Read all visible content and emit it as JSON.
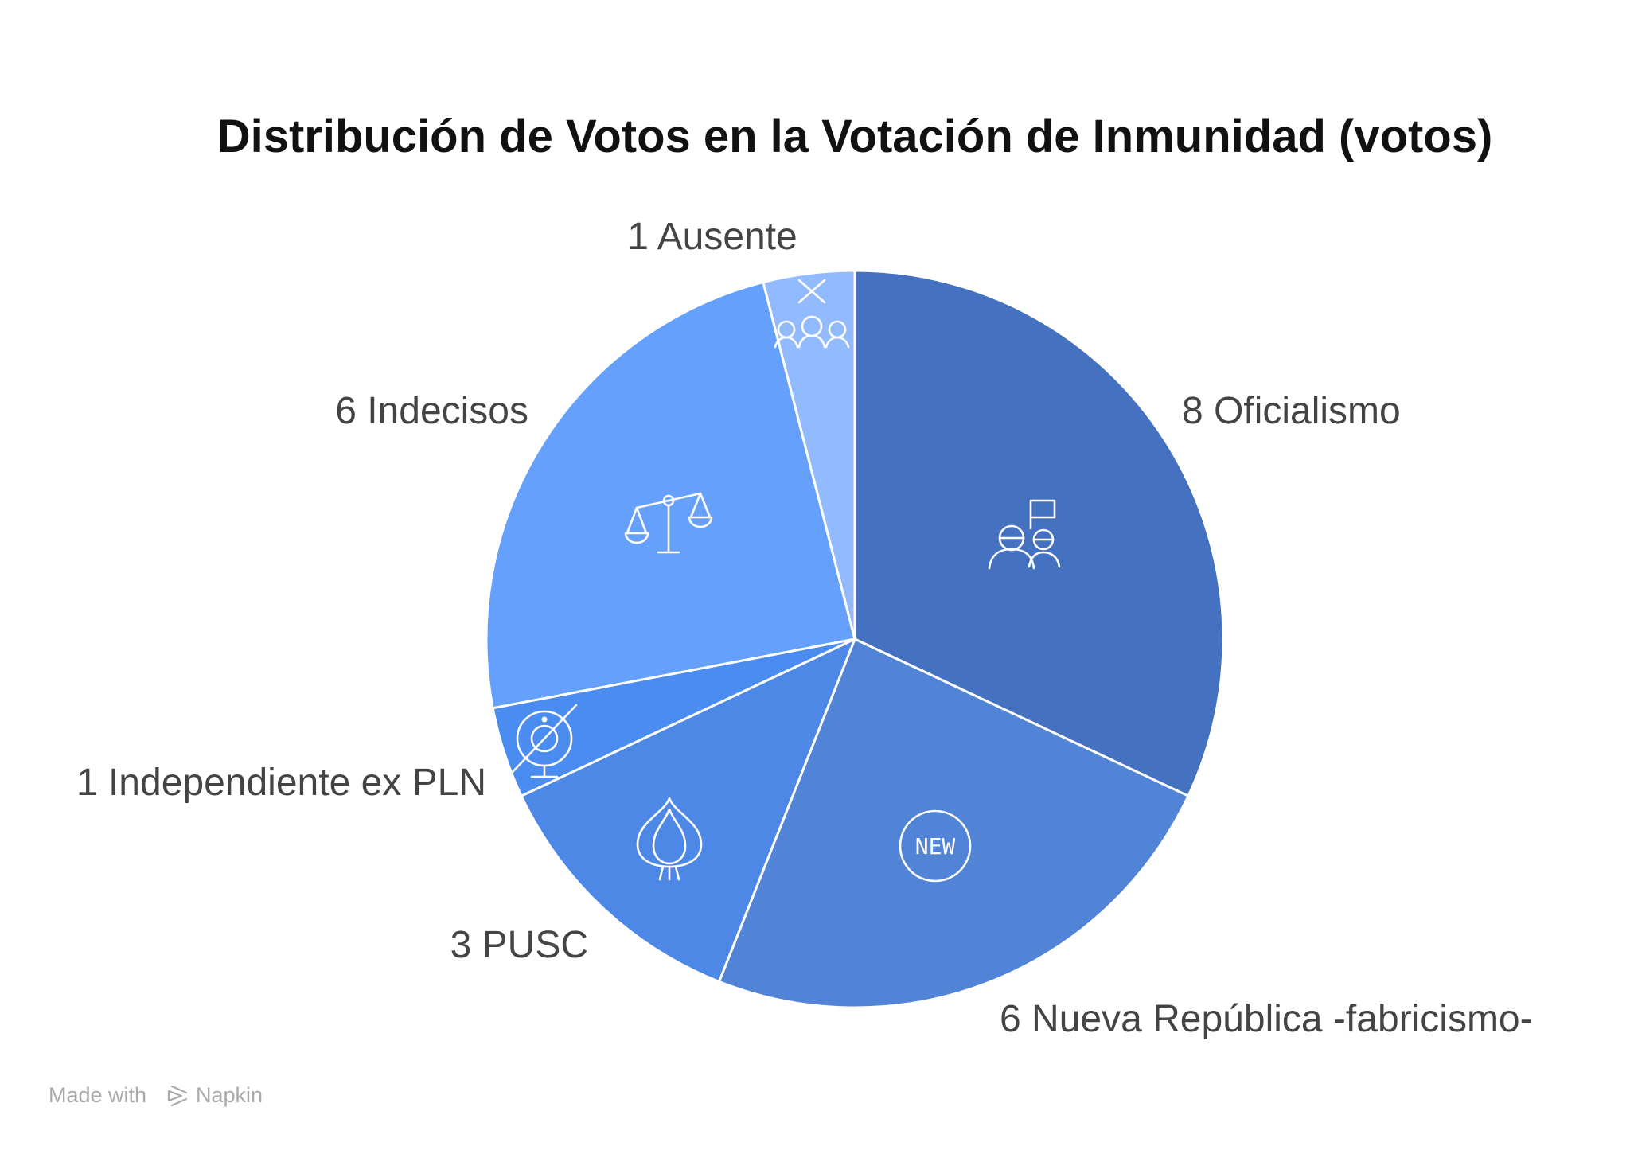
{
  "chart_data": {
    "type": "pie",
    "title": "Distribución de Votos en la Votación de Inmunidad (votos)",
    "slices": [
      {
        "label": "8 Oficialismo",
        "value": 8,
        "color": "#4472C0",
        "icon": "people-flag-icon"
      },
      {
        "label": "6 Nueva República -fabricismo-",
        "value": 6,
        "color": "#5183D6",
        "icon": "new-badge-icon"
      },
      {
        "label": "3 PUSC",
        "value": 3,
        "color": "#4E88E6",
        "icon": "onion-icon"
      },
      {
        "label": "1 Independiente ex PLN",
        "value": 1,
        "color": "#4A8CF0",
        "icon": "webcam-off-icon"
      },
      {
        "label": "6 Indecisos",
        "value": 6,
        "color": "#64A0FC",
        "icon": "balance-scale-icon"
      },
      {
        "label": "1 Ausente",
        "value": 1,
        "color": "#92BBFF",
        "icon": "absent-group-icon"
      }
    ]
  },
  "watermark": {
    "prefix": "Made with",
    "brand": "Napkin",
    "icon": "napkin-logo-icon"
  }
}
